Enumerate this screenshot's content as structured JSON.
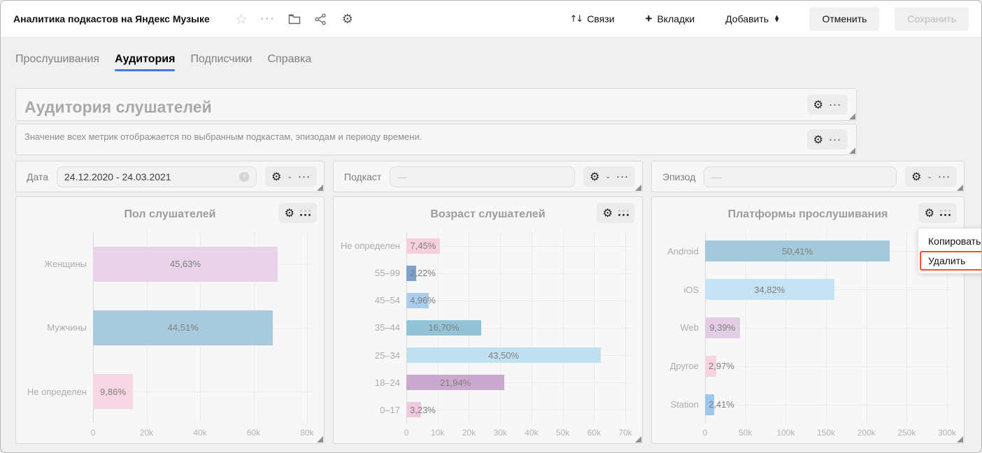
{
  "header": {
    "title": "Аналитика подкастов на Яндекс Музыке",
    "links_label": "Связи",
    "tabs_label": "Вкладки",
    "add_label": "Добавить",
    "cancel_label": "Отменить",
    "save_label": "Сохранить"
  },
  "icons": {
    "star": "☆",
    "more_dots": "···",
    "gear": "⚙",
    "updown": "↑↓",
    "plus": "+",
    "arrow_up": "▲",
    "arrow_down": "▼",
    "clear": "×",
    "chevron_down": "⌄",
    "dash_placeholder": "—"
  },
  "tabs": [
    {
      "label": "Прослушивания",
      "active": false
    },
    {
      "label": "Аудитория",
      "active": true
    },
    {
      "label": "Подписчики",
      "active": false
    },
    {
      "label": "Справка",
      "active": false
    }
  ],
  "title_widget": {
    "text": "Аудитория слушателей"
  },
  "description_widget": {
    "text": "Значение всех метрик отображается по выбранным подкастам, эпизодам и периоду времени."
  },
  "filters": {
    "date": {
      "label": "Дата",
      "value": "24.12.2020 - 24.03.2021",
      "clearable": true
    },
    "podcast": {
      "label": "Подкаст",
      "placeholder": "—"
    },
    "episode": {
      "label": "Эпизод",
      "placeholder": "—"
    }
  },
  "context_menu": {
    "items": [
      "Копировать",
      "Удалить"
    ],
    "highlighted": "Удалить",
    "highlight_color": "#f4503a"
  },
  "accent_colors": {
    "tab_underline": "#3d78ef",
    "annotation": "#f4503a"
  },
  "chart_data": [
    {
      "type": "bar",
      "orientation": "horizontal",
      "title": "Пол слушателей",
      "categories": [
        "Женщины",
        "Мужчины",
        "Не определен"
      ],
      "labels": [
        "45,63%",
        "44,51%",
        "9,86%"
      ],
      "values_thousands": [
        69.0,
        67.3,
        14.9
      ],
      "percent_values": [
        45.63,
        44.51,
        9.86
      ],
      "colors": [
        "#e8d3e8",
        "#a7cbdc",
        "#f8d6e4"
      ],
      "axis_max_thousands": 80,
      "xticks": [
        "0",
        "20k",
        "40k",
        "60k",
        "80k"
      ],
      "grid": true,
      "legend": false
    },
    {
      "type": "bar",
      "orientation": "horizontal",
      "title": "Возраст слушателей",
      "categories": [
        "Не определен",
        "55–99",
        "45–54",
        "35–44",
        "25–34",
        "18–24",
        "0–17"
      ],
      "labels": [
        "7,45%",
        "2,22%",
        "4,96%",
        "16,70%",
        "43,50%",
        "21,94%",
        "3,23%"
      ],
      "values_thousands": [
        10.7,
        3.2,
        7.1,
        23.9,
        62.2,
        31.4,
        4.6
      ],
      "percent_values": [
        7.45,
        2.22,
        4.96,
        16.7,
        43.5,
        21.94,
        3.23
      ],
      "colors": [
        "#f8cfdf",
        "#7fa3cf",
        "#a9cdea",
        "#93c3d6",
        "#c0e1f0",
        "#cba9cf",
        "#edcade"
      ],
      "axis_max_thousands": 70,
      "xticks": [
        "0",
        "10k",
        "20k",
        "30k",
        "40k",
        "50k",
        "60k",
        "70k"
      ],
      "grid": true,
      "legend": false
    },
    {
      "type": "bar",
      "orientation": "horizontal",
      "title": "Платформы прослушивания",
      "categories": [
        "Android",
        "iOS",
        "Web",
        "Другое",
        "Station"
      ],
      "labels": [
        "50,41%",
        "34,82%",
        "9,39%",
        "2,97%",
        "2,41%"
      ],
      "values_thousands": [
        229,
        160,
        43,
        13.5,
        11
      ],
      "percent_values": [
        50.41,
        34.82,
        9.39,
        2.97,
        2.41
      ],
      "colors": [
        "#a3c9da",
        "#c5e3f2",
        "#e3cde4",
        "#f9d3e1",
        "#9ec7f0"
      ],
      "axis_max_thousands": 300,
      "xticks": [
        "0",
        "50k",
        "100k",
        "150k",
        "200k",
        "250k",
        "300k"
      ],
      "grid": true,
      "legend": false
    }
  ]
}
